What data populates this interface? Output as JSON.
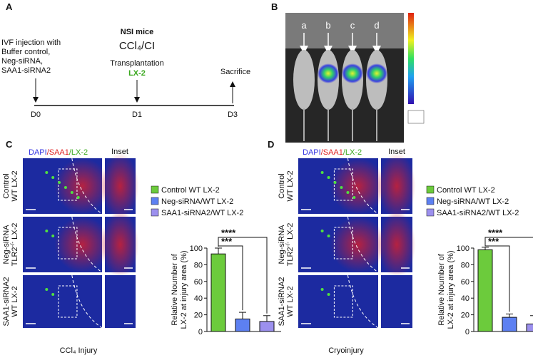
{
  "panel_a": {
    "label": "A",
    "injection": [
      "IVF injection with",
      "Buffer control,",
      "Neg-siRNA,",
      "SAA1-siRNA2"
    ],
    "mice": "NSI mice",
    "model": "CCl₄/CI",
    "transplant": "Transplantation",
    "cell": "LX-2",
    "sacrifice": "Sacrifice",
    "days": [
      "D0",
      "D1",
      "D3"
    ]
  },
  "panel_b": {
    "label": "B",
    "lanes": [
      "a",
      "b",
      "c",
      "d"
    ]
  },
  "panel_c": {
    "label": "C",
    "stain": [
      "DAPI",
      "/SAA1",
      "/LX-2"
    ],
    "inset": "Inset",
    "rows": [
      [
        "Control",
        "WT LX-2"
      ],
      [
        "Neg-siRNA",
        "TLR2",
        "-/-",
        " LX-2"
      ],
      [
        "SAA1-siRNA2",
        "WT LX-2"
      ]
    ],
    "caption": "CCl₄ Injury"
  },
  "panel_d": {
    "label": "D",
    "stain": [
      "DAPI",
      "/SAA1",
      "/LX-2"
    ],
    "inset": "Inset",
    "rows": [
      [
        "Control",
        "WT LX-2"
      ],
      [
        "Neg-siRNA",
        "TLR2",
        "-/-",
        " LX-2"
      ],
      [
        "SAA1-siRNA2",
        "WT LX-2"
      ]
    ],
    "caption": "Cryoinjury"
  },
  "chart_data": [
    {
      "type": "bar",
      "ylabel": [
        "Relative Noumber of",
        "LX-2 at injury area (%)"
      ],
      "ylim": [
        0,
        100
      ],
      "yticks": [
        0,
        20,
        40,
        60,
        80,
        100
      ],
      "series": [
        {
          "name": "Control WT LX-2",
          "color": "#6ccb3c",
          "values": [
            93
          ],
          "errors": [
            7
          ]
        },
        {
          "name": "Neg-siRNA/WT LX-2",
          "color": "#5d80f2",
          "values": [
            15
          ],
          "errors": [
            8
          ]
        },
        {
          "name": "SAA1-siRNA2/WT LX-2",
          "color": "#9c90ee",
          "values": [
            12
          ],
          "errors": [
            7
          ]
        }
      ],
      "significance": [
        "***",
        "****"
      ]
    },
    {
      "type": "bar",
      "ylabel": [
        "Relative Noumber of",
        "LX-2 at injury area (%)"
      ],
      "ylim": [
        0,
        100
      ],
      "yticks": [
        0,
        20,
        40,
        60,
        80,
        100
      ],
      "series": [
        {
          "name": "Control WT LX-2",
          "color": "#6ccb3c",
          "values": [
            98
          ],
          "errors": [
            3
          ]
        },
        {
          "name": "Neg-siRNA/WT LX-2",
          "color": "#5d80f2",
          "values": [
            17
          ],
          "errors": [
            4
          ]
        },
        {
          "name": "SAA1-siRNA2/WT LX-2",
          "color": "#9c90ee",
          "values": [
            9
          ],
          "errors": [
            10
          ]
        }
      ],
      "significance": [
        "***",
        "****"
      ]
    }
  ]
}
